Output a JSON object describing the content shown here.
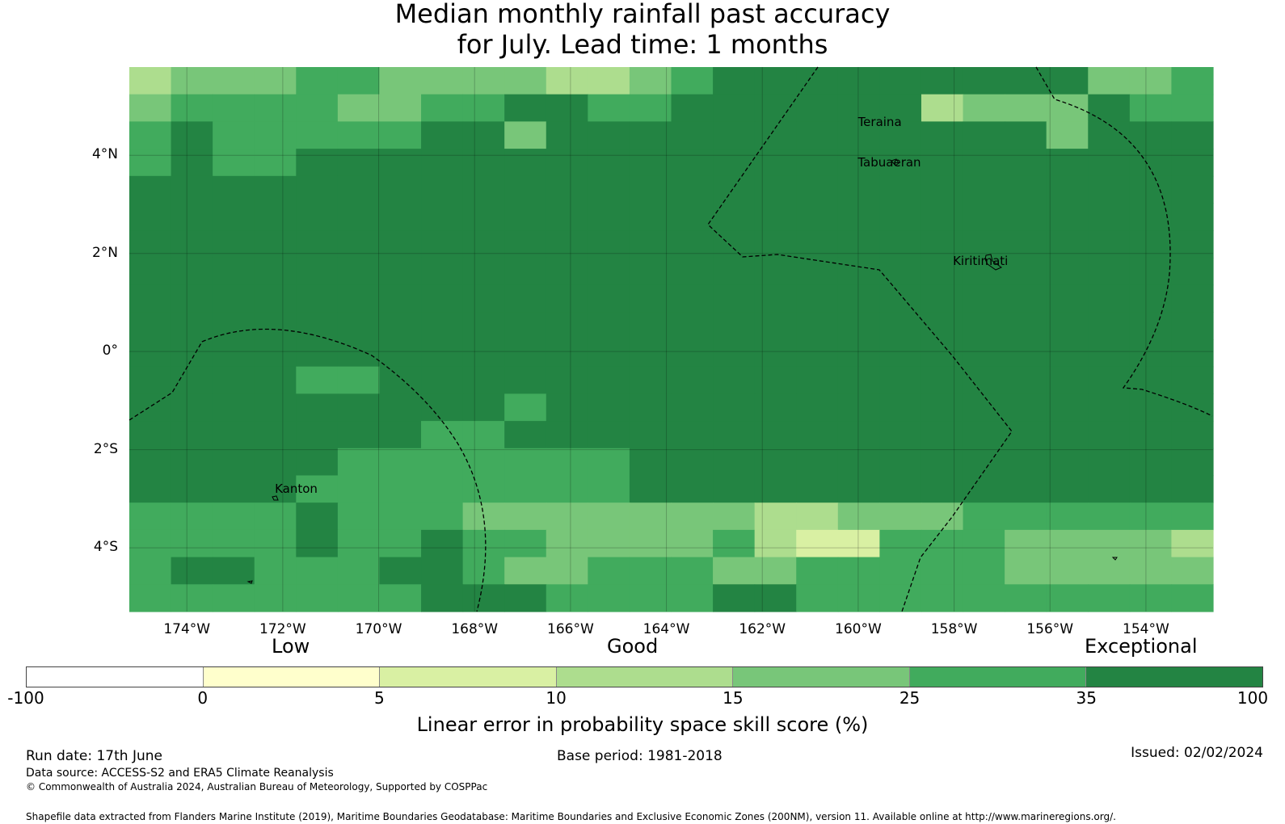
{
  "title": {
    "line1": "Median monthly rainfall past accuracy",
    "line2": "for July. Lead time: 1 months"
  },
  "map": {
    "lon_range": [
      -175.2,
      -152.6
    ],
    "lat_range": [
      -5.3,
      5.8
    ],
    "lat_ticks": [
      {
        "value": 4,
        "label": "4°N"
      },
      {
        "value": 2,
        "label": "2°N"
      },
      {
        "value": 0,
        "label": "0°"
      },
      {
        "value": -2,
        "label": "2°S"
      },
      {
        "value": -4,
        "label": "4°S"
      }
    ],
    "lon_ticks": [
      {
        "value": -174,
        "label": "174°W"
      },
      {
        "value": -172,
        "label": "172°W"
      },
      {
        "value": -170,
        "label": "170°W"
      },
      {
        "value": -168,
        "label": "168°W"
      },
      {
        "value": -166,
        "label": "166°W"
      },
      {
        "value": -164,
        "label": "164°W"
      },
      {
        "value": -162,
        "label": "162°W"
      },
      {
        "value": -160,
        "label": "160°W"
      },
      {
        "value": -158,
        "label": "158°W"
      },
      {
        "value": -156,
        "label": "156°W"
      },
      {
        "value": -154,
        "label": "154°W"
      }
    ],
    "places": [
      {
        "name": "Teraina",
        "lon": -159.55,
        "lat": 4.68
      },
      {
        "name": "Tabuaeran",
        "lon": -159.35,
        "lat": 3.85
      },
      {
        "name": "Kiritimati",
        "lon": -157.45,
        "lat": 1.85
      },
      {
        "name": "Kanton",
        "lon": -171.72,
        "lat": -2.8
      }
    ],
    "grid_cols": 26,
    "grid_rows": 20,
    "skill_class_rows": [
      "34445544443345666666666445",
      "45555445566556666663444655",
      "56555556646666666666664666",
      "56556666666666666666666666",
      "66666666666666666666666666",
      "66666666666666666666666666",
      "66666666666666666666666666",
      "66666666666666666666666666",
      "66666666666666666666666666",
      "66666666666666666666666666",
      "66666666666666666666666666",
      "66665566666666666666666666",
      "66666666656666666666666666",
      "66666665566666666666666666",
      "66666555555566666666666666",
      "66665555555566666666666666",
      "55556555444444433444555555",
      "55556556554444532255544443",
      "56655566544555445555544444",
      "55555556665555665555555555"
    ]
  },
  "legend": {
    "categories": [
      "Low",
      "Good",
      "Exceptional"
    ],
    "ticks": [
      "-100",
      "0",
      "5",
      "10",
      "15",
      "25",
      "35",
      "100"
    ],
    "colors": [
      "#ffffff",
      "#ffffcc",
      "#d9f0a3",
      "#addd8e",
      "#78c679",
      "#41ab5d",
      "#238443"
    ],
    "title": "Linear error in probability space skill score (%)"
  },
  "footer": {
    "run_date": "Run date: 17th June",
    "base_period": "Base period: 1981-2018",
    "issued": "Issued: 02/02/2024",
    "data_source": "Data source: ACCESS-S2 and ERA5 Climate Reanalysis",
    "copyright": "© Commonwealth of Australia 2024, Australian Bureau of Meteorology, Supported by COSPPac",
    "shapefile": "Shapefile data extracted from Flanders Marine Institute (2019), Maritime Boundaries Geodatabase: Maritime Boundaries and Exclusive Economic Zones (200NM), version 11. Available online at http://www.marineregions.org/."
  }
}
